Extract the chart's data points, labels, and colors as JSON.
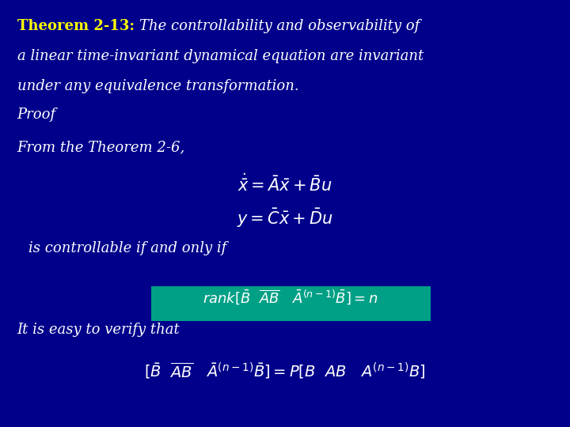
{
  "background_color": "#00008B",
  "text_color": "#FFFFFF",
  "yellow_color": "#FFFF00",
  "green_highlight": "#00A086",
  "title_theorem": "Theorem 2-13: ",
  "title_rest_1": "The controllability and observability of",
  "title_rest_2": "a linear time-invariant dynamical equation are invariant",
  "title_rest_3": "under any equivalence transformation.",
  "proof_text": "Proof",
  "from_text": "From the Theorem 2-6,",
  "controllable_text": "is controllable if and only if",
  "verify_text": "It is easy to verify that"
}
